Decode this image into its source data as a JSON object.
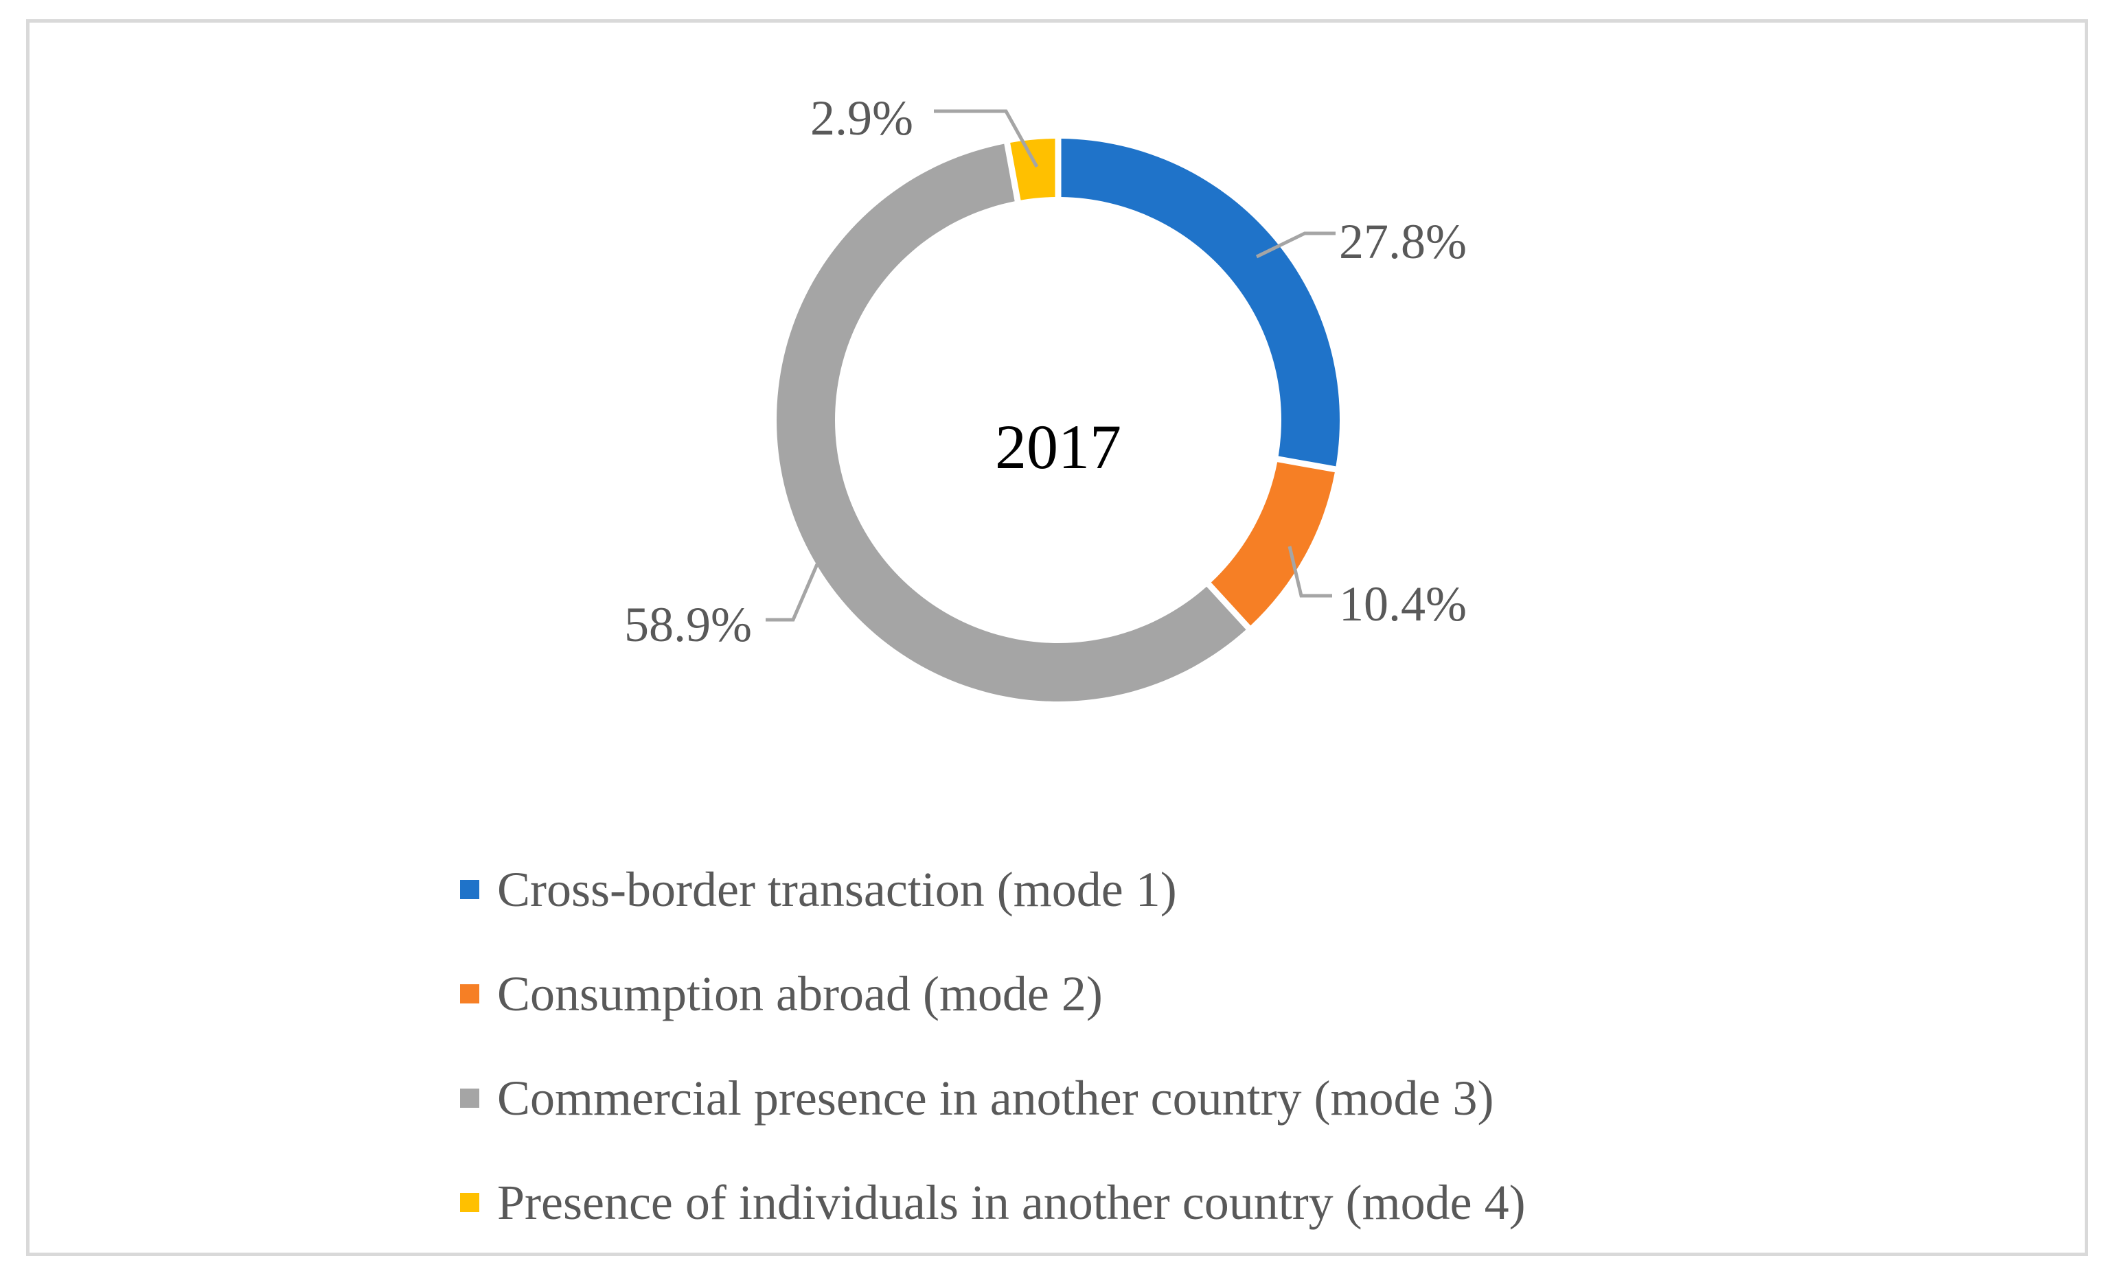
{
  "chart_data": {
    "type": "pie",
    "variant": "donut",
    "center_label": "2017",
    "categories": [
      "Cross-border transaction (mode 1)",
      "Consumption abroad (mode 2)",
      "Commercial presence in another country (mode 3)",
      "Presence of individuals in another country (mode 4)"
    ],
    "values": [
      27.8,
      10.4,
      58.9,
      2.9
    ],
    "value_labels": [
      "27.8%",
      "10.4%",
      "58.9%",
      "2.9%"
    ],
    "colors": [
      "#1f73c9",
      "#f67f25",
      "#a5a5a5",
      "#ffc000"
    ],
    "legend_position": "bottom",
    "leader_line_color": "#a5a5a5"
  }
}
